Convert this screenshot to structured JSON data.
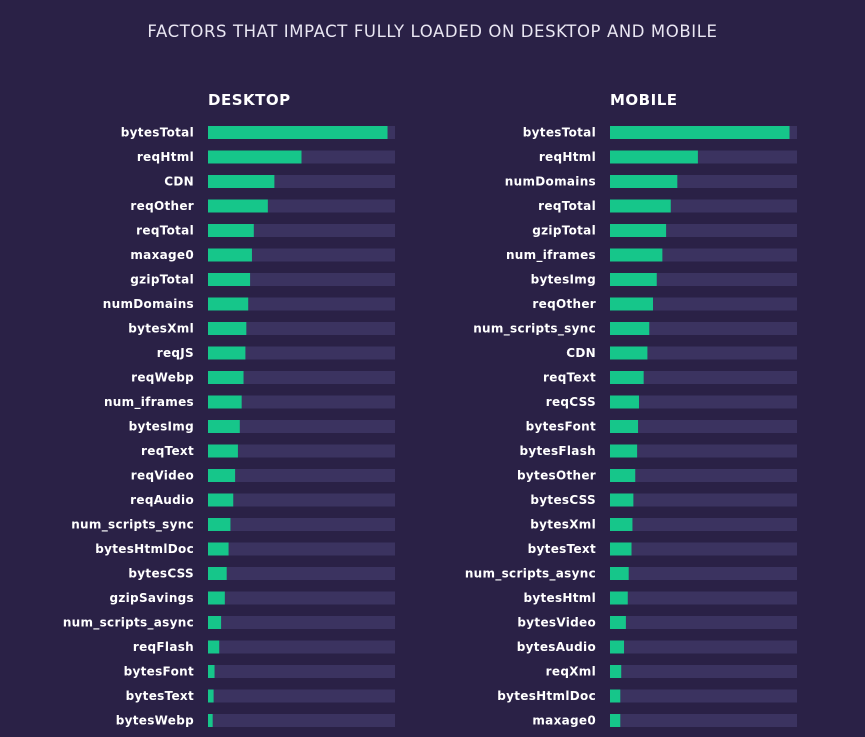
{
  "colors": {
    "background": "#2a2146",
    "bar": "#16c68a",
    "track": "#3b3360"
  },
  "chart_data": [
    {
      "type": "bar",
      "orientation": "horizontal",
      "title": "DESKTOP",
      "suptitle": "FACTORS THAT IMPACT FULLY LOADED ON DESKTOP AND MOBILE",
      "xlim": [
        0,
        1
      ],
      "categories": [
        "bytesTotal",
        "reqHtml",
        "CDN",
        "reqOther",
        "reqTotal",
        "maxage0",
        "gzipTotal",
        "numDomains",
        "bytesXml",
        "reqJS",
        "reqWebp",
        "num_iframes",
        "bytesImg",
        "reqText",
        "reqVideo",
        "reqAudio",
        "num_scripts_sync",
        "bytesHtmlDoc",
        "bytesCSS",
        "gzipSavings",
        "num_scripts_async",
        "reqFlash",
        "bytesFont",
        "bytesText",
        "bytesWebp"
      ],
      "values": [
        0.96,
        0.5,
        0.355,
        0.32,
        0.245,
        0.235,
        0.225,
        0.215,
        0.205,
        0.2,
        0.19,
        0.18,
        0.17,
        0.16,
        0.145,
        0.135,
        0.12,
        0.11,
        0.1,
        0.09,
        0.07,
        0.06,
        0.035,
        0.03,
        0.025
      ]
    },
    {
      "type": "bar",
      "orientation": "horizontal",
      "title": "MOBILE",
      "xlim": [
        0,
        1
      ],
      "categories": [
        "bytesTotal",
        "reqHtml",
        "numDomains",
        "reqTotal",
        "gzipTotal",
        "num_iframes",
        "bytesImg",
        "reqOther",
        "num_scripts_sync",
        "CDN",
        "reqText",
        "reqCSS",
        "bytesFont",
        "bytesFlash",
        "bytesOther",
        "bytesCSS",
        "bytesXml",
        "bytesText",
        "num_scripts_async",
        "bytesHtml",
        "bytesVideo",
        "bytesAudio",
        "reqXml",
        "bytesHtmlDoc",
        "maxage0"
      ],
      "values": [
        0.96,
        0.47,
        0.36,
        0.325,
        0.3,
        0.28,
        0.25,
        0.23,
        0.21,
        0.2,
        0.18,
        0.155,
        0.15,
        0.145,
        0.135,
        0.125,
        0.12,
        0.115,
        0.1,
        0.095,
        0.085,
        0.075,
        0.06,
        0.055,
        0.055
      ]
    }
  ]
}
